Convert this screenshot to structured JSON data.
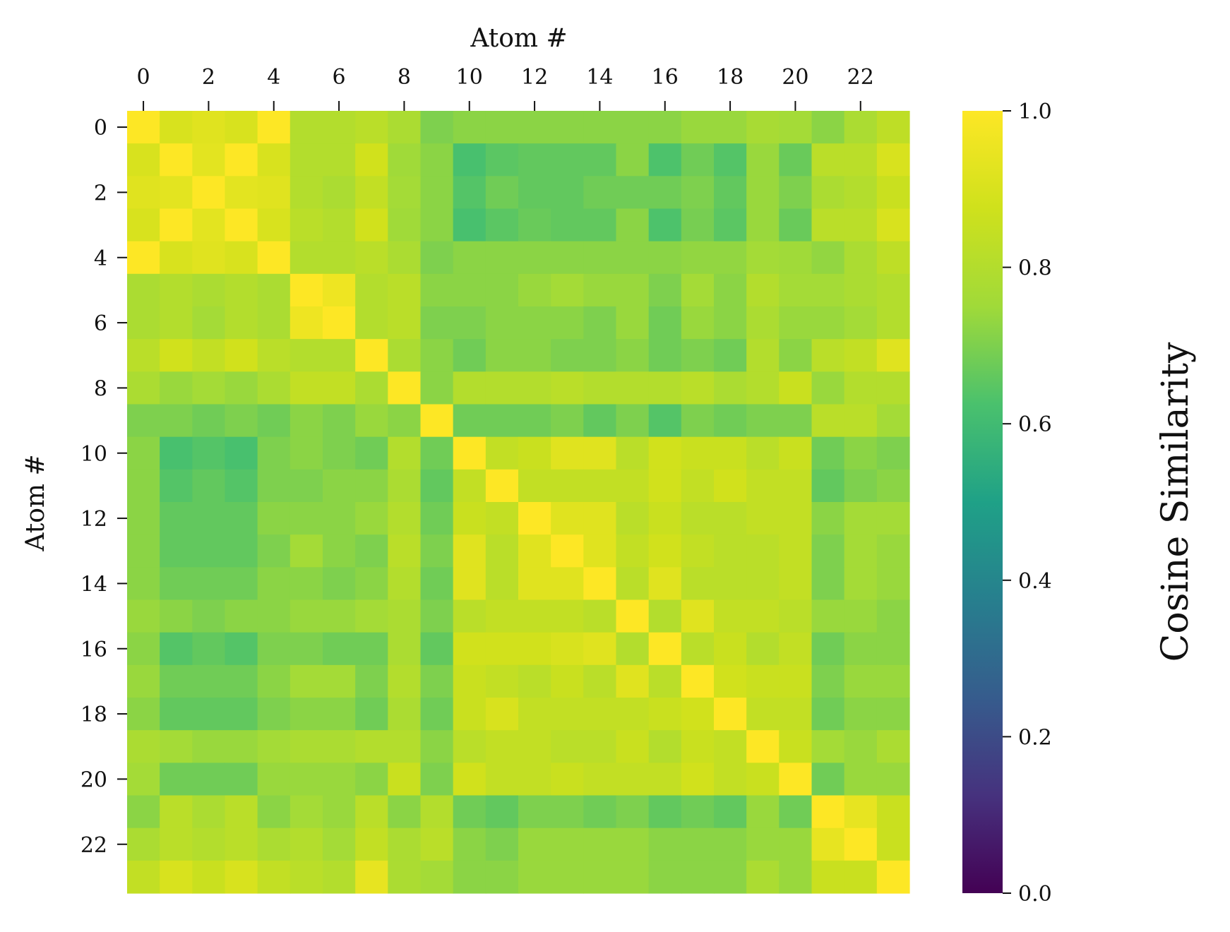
{
  "chart_data": {
    "type": "heatmap",
    "xlabel": "Atom #",
    "ylabel": "Atom #",
    "colorbar_label": "Cosine Similarity",
    "colormap": "viridis",
    "vmin": 0.0,
    "vmax": 1.0,
    "x_tick_labels": [
      "0",
      "2",
      "4",
      "6",
      "8",
      "10",
      "12",
      "14",
      "16",
      "18",
      "20",
      "22"
    ],
    "y_tick_labels": [
      "0",
      "2",
      "4",
      "6",
      "8",
      "10",
      "12",
      "14",
      "16",
      "18",
      "20",
      "22"
    ],
    "colorbar_tick_labels": [
      "0.0",
      "0.2",
      "0.4",
      "0.6",
      "0.8",
      "1.0"
    ],
    "x_axis_position": "top",
    "grid": false,
    "n_rows": 24,
    "n_cols": 24,
    "matrix": [
      [
        1.0,
        0.9,
        0.92,
        0.9,
        1.0,
        0.8,
        0.8,
        0.82,
        0.78,
        0.7,
        0.72,
        0.72,
        0.72,
        0.72,
        0.72,
        0.72,
        0.72,
        0.74,
        0.74,
        0.77,
        0.76,
        0.72,
        0.78,
        0.83
      ],
      [
        0.9,
        1.0,
        0.93,
        1.0,
        0.9,
        0.8,
        0.8,
        0.88,
        0.75,
        0.72,
        0.62,
        0.65,
        0.66,
        0.66,
        0.66,
        0.72,
        0.63,
        0.68,
        0.64,
        0.74,
        0.67,
        0.82,
        0.82,
        0.9
      ],
      [
        0.92,
        0.93,
        1.0,
        0.93,
        0.92,
        0.8,
        0.78,
        0.84,
        0.76,
        0.72,
        0.64,
        0.68,
        0.66,
        0.66,
        0.68,
        0.68,
        0.68,
        0.7,
        0.66,
        0.74,
        0.7,
        0.78,
        0.8,
        0.86
      ],
      [
        0.9,
        1.0,
        0.93,
        1.0,
        0.9,
        0.82,
        0.8,
        0.88,
        0.75,
        0.72,
        0.62,
        0.65,
        0.67,
        0.66,
        0.66,
        0.72,
        0.63,
        0.69,
        0.65,
        0.74,
        0.67,
        0.82,
        0.82,
        0.9
      ],
      [
        1.0,
        0.9,
        0.92,
        0.9,
        1.0,
        0.8,
        0.8,
        0.82,
        0.78,
        0.7,
        0.72,
        0.72,
        0.72,
        0.72,
        0.72,
        0.72,
        0.72,
        0.73,
        0.73,
        0.76,
        0.75,
        0.73,
        0.78,
        0.83
      ],
      [
        0.78,
        0.8,
        0.78,
        0.8,
        0.78,
        1.0,
        0.96,
        0.8,
        0.82,
        0.72,
        0.72,
        0.72,
        0.74,
        0.76,
        0.74,
        0.74,
        0.7,
        0.76,
        0.72,
        0.8,
        0.76,
        0.76,
        0.78,
        0.8
      ],
      [
        0.78,
        0.8,
        0.76,
        0.8,
        0.78,
        0.96,
        1.0,
        0.8,
        0.82,
        0.7,
        0.7,
        0.72,
        0.72,
        0.72,
        0.7,
        0.74,
        0.68,
        0.74,
        0.72,
        0.78,
        0.74,
        0.74,
        0.76,
        0.8
      ],
      [
        0.82,
        0.88,
        0.84,
        0.88,
        0.82,
        0.8,
        0.8,
        1.0,
        0.78,
        0.72,
        0.68,
        0.72,
        0.72,
        0.7,
        0.7,
        0.72,
        0.68,
        0.7,
        0.68,
        0.8,
        0.72,
        0.82,
        0.84,
        0.92
      ],
      [
        0.78,
        0.74,
        0.76,
        0.74,
        0.78,
        0.84,
        0.84,
        0.78,
        1.0,
        0.72,
        0.8,
        0.8,
        0.8,
        0.82,
        0.8,
        0.8,
        0.8,
        0.82,
        0.78,
        0.8,
        0.86,
        0.74,
        0.8,
        0.8
      ],
      [
        0.7,
        0.7,
        0.68,
        0.7,
        0.68,
        0.72,
        0.7,
        0.74,
        0.72,
        1.0,
        0.68,
        0.68,
        0.68,
        0.7,
        0.66,
        0.7,
        0.64,
        0.7,
        0.68,
        0.7,
        0.7,
        0.82,
        0.82,
        0.76
      ],
      [
        0.72,
        0.62,
        0.64,
        0.62,
        0.7,
        0.72,
        0.7,
        0.68,
        0.8,
        0.68,
        1.0,
        0.84,
        0.86,
        0.92,
        0.92,
        0.82,
        0.88,
        0.86,
        0.86,
        0.82,
        0.86,
        0.68,
        0.72,
        0.7
      ],
      [
        0.72,
        0.64,
        0.66,
        0.64,
        0.7,
        0.7,
        0.72,
        0.72,
        0.78,
        0.66,
        0.84,
        1.0,
        0.84,
        0.84,
        0.84,
        0.84,
        0.88,
        0.84,
        0.88,
        0.84,
        0.84,
        0.66,
        0.7,
        0.72
      ],
      [
        0.72,
        0.66,
        0.66,
        0.66,
        0.72,
        0.72,
        0.72,
        0.74,
        0.8,
        0.68,
        0.86,
        0.84,
        1.0,
        0.92,
        0.92,
        0.82,
        0.86,
        0.82,
        0.82,
        0.84,
        0.84,
        0.72,
        0.76,
        0.76
      ],
      [
        0.72,
        0.66,
        0.66,
        0.66,
        0.7,
        0.76,
        0.72,
        0.7,
        0.82,
        0.7,
        0.92,
        0.82,
        0.92,
        1.0,
        0.92,
        0.84,
        0.88,
        0.84,
        0.82,
        0.82,
        0.84,
        0.7,
        0.76,
        0.74
      ],
      [
        0.72,
        0.68,
        0.68,
        0.68,
        0.72,
        0.72,
        0.7,
        0.72,
        0.8,
        0.68,
        0.92,
        0.82,
        0.92,
        0.92,
        1.0,
        0.82,
        0.92,
        0.82,
        0.82,
        0.82,
        0.84,
        0.7,
        0.76,
        0.74
      ],
      [
        0.74,
        0.72,
        0.7,
        0.72,
        0.72,
        0.74,
        0.74,
        0.76,
        0.78,
        0.7,
        0.82,
        0.84,
        0.84,
        0.84,
        0.82,
        1.0,
        0.8,
        0.92,
        0.84,
        0.84,
        0.82,
        0.74,
        0.74,
        0.72
      ],
      [
        0.72,
        0.64,
        0.66,
        0.64,
        0.7,
        0.7,
        0.68,
        0.68,
        0.78,
        0.66,
        0.88,
        0.88,
        0.88,
        0.9,
        0.92,
        0.8,
        1.0,
        0.82,
        0.86,
        0.8,
        0.84,
        0.68,
        0.72,
        0.72
      ],
      [
        0.74,
        0.68,
        0.68,
        0.68,
        0.72,
        0.76,
        0.76,
        0.7,
        0.8,
        0.7,
        0.86,
        0.84,
        0.82,
        0.86,
        0.82,
        0.92,
        0.82,
        1.0,
        0.88,
        0.86,
        0.86,
        0.7,
        0.74,
        0.74
      ],
      [
        0.72,
        0.66,
        0.66,
        0.66,
        0.7,
        0.72,
        0.72,
        0.68,
        0.78,
        0.68,
        0.86,
        0.9,
        0.84,
        0.84,
        0.84,
        0.84,
        0.86,
        0.88,
        1.0,
        0.84,
        0.84,
        0.68,
        0.72,
        0.72
      ],
      [
        0.78,
        0.76,
        0.74,
        0.74,
        0.76,
        0.78,
        0.78,
        0.8,
        0.8,
        0.72,
        0.82,
        0.84,
        0.84,
        0.82,
        0.82,
        0.86,
        0.8,
        0.86,
        0.84,
        1.0,
        0.86,
        0.76,
        0.74,
        0.78
      ],
      [
        0.76,
        0.68,
        0.68,
        0.68,
        0.74,
        0.74,
        0.74,
        0.72,
        0.86,
        0.7,
        0.88,
        0.84,
        0.84,
        0.86,
        0.84,
        0.84,
        0.84,
        0.88,
        0.84,
        0.86,
        1.0,
        0.68,
        0.74,
        0.74
      ],
      [
        0.72,
        0.82,
        0.78,
        0.82,
        0.72,
        0.76,
        0.74,
        0.82,
        0.72,
        0.8,
        0.68,
        0.66,
        0.7,
        0.7,
        0.68,
        0.7,
        0.66,
        0.68,
        0.66,
        0.74,
        0.68,
        1.0,
        0.94,
        0.86
      ],
      [
        0.78,
        0.82,
        0.8,
        0.82,
        0.78,
        0.8,
        0.76,
        0.84,
        0.78,
        0.82,
        0.72,
        0.7,
        0.74,
        0.74,
        0.74,
        0.74,
        0.72,
        0.72,
        0.72,
        0.74,
        0.74,
        0.94,
        1.0,
        0.86
      ],
      [
        0.84,
        0.9,
        0.86,
        0.9,
        0.84,
        0.82,
        0.8,
        0.94,
        0.78,
        0.76,
        0.72,
        0.72,
        0.74,
        0.74,
        0.74,
        0.74,
        0.72,
        0.72,
        0.72,
        0.78,
        0.74,
        0.86,
        0.86,
        1.0
      ]
    ]
  }
}
